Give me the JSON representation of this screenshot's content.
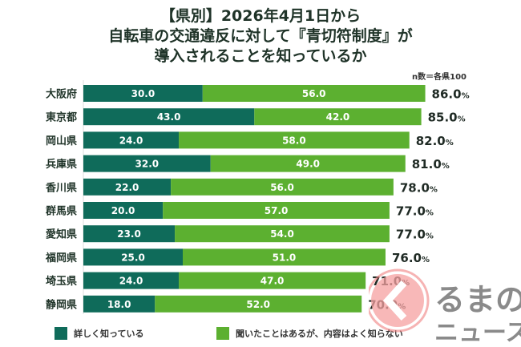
{
  "chart_data": {
    "type": "bar",
    "orientation": "horizontal",
    "stacked": true,
    "title_lines": [
      "【県別】2026年4月1日から",
      "自転車の交通違反に対して『青切符制度』が",
      "導入されることを知っているか"
    ],
    "note": "n数＝各県100",
    "categories": [
      "大阪府",
      "東京都",
      "岡山県",
      "兵庫県",
      "香川県",
      "群馬県",
      "愛知県",
      "福岡県",
      "埼玉県",
      "静岡県"
    ],
    "series": [
      {
        "name": "詳しく知っている",
        "color": "#0f6b5a",
        "values": [
          30.0,
          43.0,
          24.0,
          32.0,
          22.0,
          20.0,
          23.0,
          25.0,
          24.0,
          18.0
        ]
      },
      {
        "name": "聞いたことはあるが、内容はよく知らない",
        "color": "#5cb030",
        "values": [
          56.0,
          42.0,
          58.0,
          49.0,
          56.0,
          57.0,
          54.0,
          51.0,
          47.0,
          52.0
        ]
      }
    ],
    "totals": [
      "86.0",
      "85.0",
      "82.0",
      "81.0",
      "78.0",
      "77.0",
      "77.0",
      "76.0",
      "71.0",
      "70.0"
    ],
    "total_unit": "%",
    "legend_position": "bottom",
    "grid": false
  },
  "watermark": {
    "text_line1": "るまの",
    "text_line2": "ニュース"
  }
}
